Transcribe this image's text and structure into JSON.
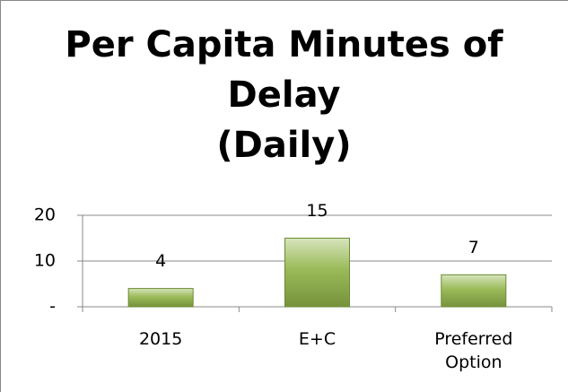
{
  "chart_data": {
    "type": "bar",
    "title": "Per Capita Minutes of Delay\n(Daily)",
    "categories": [
      "2015",
      "E+C",
      "Preferred Option"
    ],
    "values": [
      4,
      15,
      7
    ],
    "color": "#9bbb59",
    "ylim": [
      0,
      20
    ],
    "yticks": [
      {
        "value": 0,
        "label": "-"
      },
      10,
      20
    ],
    "grid": true
  }
}
